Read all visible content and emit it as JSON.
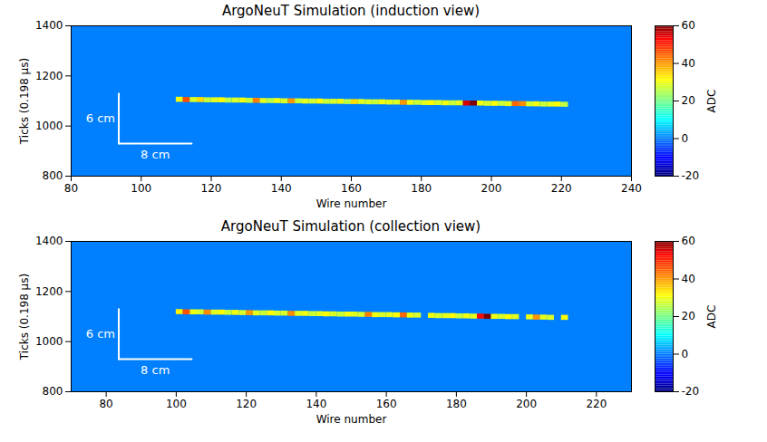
{
  "chart_data": [
    {
      "type": "heatmap",
      "title": "ArgoNeuT Simulation (induction view)",
      "x_label": "Wire number",
      "y_label": "Ticks (0.198 μs)",
      "xlim": [
        80,
        240
      ],
      "xticks": [
        80,
        100,
        120,
        140,
        160,
        180,
        200,
        220,
        240
      ],
      "ylim": [
        800,
        1400
      ],
      "yticks": [
        800,
        1000,
        1200,
        1400
      ],
      "background_adc": 0,
      "track": {
        "wire": [
          111,
          113,
          115,
          117,
          119,
          121,
          123,
          125,
          127,
          129,
          131,
          133,
          135,
          137,
          139,
          141,
          143,
          145,
          147,
          149,
          151,
          153,
          155,
          157,
          159,
          161,
          163,
          165,
          167,
          169,
          171,
          173,
          175,
          177,
          179,
          181,
          183,
          185,
          187,
          189,
          191,
          193,
          195,
          197,
          199,
          201,
          203,
          205,
          207,
          209,
          211,
          213,
          215,
          217,
          219,
          221
        ],
        "tick": [
          1105,
          1104,
          1104,
          1104,
          1103,
          1103,
          1103,
          1102,
          1102,
          1102,
          1101,
          1101,
          1100,
          1100,
          1100,
          1099,
          1099,
          1099,
          1098,
          1098,
          1098,
          1097,
          1097,
          1097,
          1096,
          1096,
          1096,
          1095,
          1095,
          1095,
          1094,
          1094,
          1093,
          1093,
          1093,
          1092,
          1092,
          1092,
          1091,
          1091,
          1091,
          1090,
          1090,
          1090,
          1089,
          1089,
          1089,
          1088,
          1088,
          1088,
          1087,
          1087,
          1086,
          1086,
          1086,
          1085
        ],
        "adc": [
          30,
          46,
          28,
          34,
          27,
          29,
          31,
          26,
          28,
          30,
          27,
          42,
          29,
          26,
          30,
          28,
          40,
          27,
          29,
          28,
          31,
          27,
          28,
          30,
          26,
          34,
          29,
          28,
          27,
          30,
          29,
          28,
          40,
          30,
          27,
          29,
          31,
          28,
          30,
          27,
          29,
          55,
          60,
          30,
          28,
          31,
          27,
          29,
          44,
          41,
          28,
          30,
          27,
          29,
          31,
          26
        ]
      },
      "colorbar": {
        "label": "ADC",
        "range": [
          -20,
          60
        ],
        "ticks": [
          -20,
          0,
          20,
          40,
          60
        ]
      },
      "annotations": [
        "6 cm",
        "8 cm"
      ]
    },
    {
      "type": "heatmap",
      "title": "ArgoNeuT Simulation (collection view)",
      "x_label": "Wire number",
      "y_label": "Ticks (0.198 μs)",
      "xlim": [
        70,
        230
      ],
      "xticks": [
        80,
        100,
        120,
        140,
        160,
        180,
        200,
        220
      ],
      "ylim": [
        800,
        1400
      ],
      "yticks": [
        800,
        1000,
        1200,
        1400
      ],
      "background_adc": 0,
      "track": {
        "wire": [
          101,
          103,
          105,
          107,
          109,
          111,
          113,
          115,
          117,
          119,
          121,
          123,
          125,
          127,
          129,
          131,
          133,
          135,
          137,
          139,
          141,
          143,
          145,
          147,
          149,
          151,
          153,
          155,
          157,
          159,
          161,
          163,
          165,
          167,
          169,
          173,
          175,
          177,
          179,
          181,
          183,
          185,
          187,
          189,
          191,
          193,
          195,
          197,
          201,
          203,
          205,
          207,
          211
        ],
        "tick": [
          1118,
          1117,
          1117,
          1117,
          1116,
          1116,
          1116,
          1115,
          1115,
          1114,
          1114,
          1113,
          1113,
          1113,
          1112,
          1112,
          1111,
          1111,
          1111,
          1110,
          1110,
          1109,
          1109,
          1108,
          1108,
          1108,
          1107,
          1107,
          1106,
          1106,
          1106,
          1105,
          1105,
          1104,
          1104,
          1103,
          1102,
          1102,
          1102,
          1101,
          1101,
          1100,
          1100,
          1099,
          1099,
          1099,
          1098,
          1098,
          1097,
          1096,
          1096,
          1095,
          1095
        ],
        "adc": [
          32,
          46,
          30,
          28,
          41,
          29,
          31,
          27,
          30,
          28,
          40,
          29,
          27,
          31,
          28,
          28,
          41,
          29,
          30,
          27,
          29,
          31,
          28,
          27,
          30,
          29,
          28,
          42,
          30,
          28,
          29,
          31,
          44,
          30,
          28,
          30,
          28,
          29,
          31,
          27,
          30,
          29,
          52,
          60,
          30,
          28,
          31,
          29,
          30,
          40,
          29,
          28,
          31
        ]
      },
      "colorbar": {
        "label": "ADC",
        "range": [
          -20,
          60
        ],
        "ticks": [
          -20,
          0,
          20,
          40,
          60
        ]
      },
      "annotations": [
        "6 cm",
        "8 cm"
      ]
    }
  ]
}
